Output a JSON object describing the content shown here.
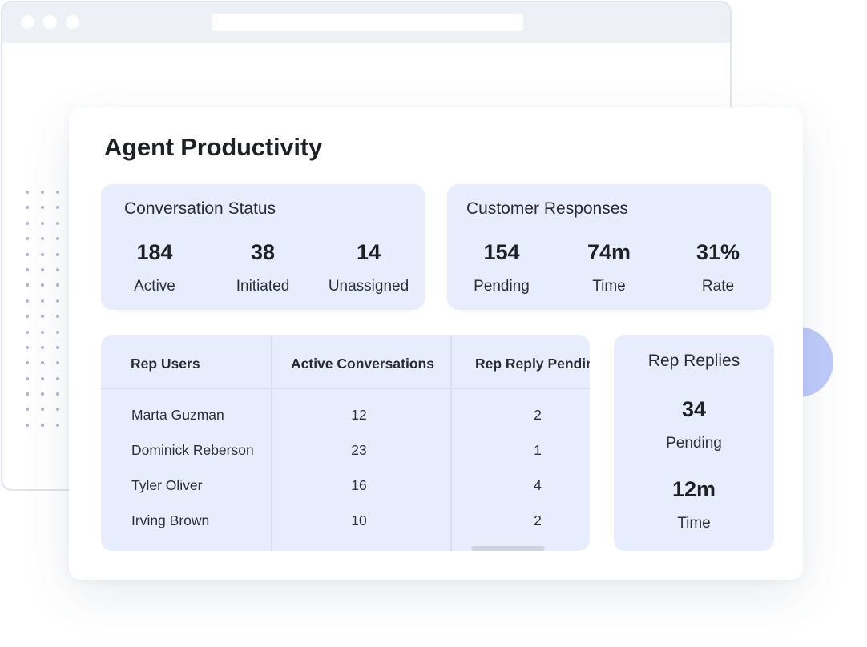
{
  "page": {
    "title": "Agent Productivity"
  },
  "conversation_status": {
    "title": "Conversation Status",
    "stats": [
      {
        "value": "184",
        "label": "Active"
      },
      {
        "value": "38",
        "label": "Initiated"
      },
      {
        "value": "14",
        "label": "Unassigned"
      }
    ]
  },
  "customer_responses": {
    "title": "Customer Responses",
    "stats": [
      {
        "value": "154",
        "label": "Pending"
      },
      {
        "value": "74m",
        "label": "Time"
      },
      {
        "value": "31%",
        "label": "Rate"
      }
    ]
  },
  "rep_table": {
    "columns": [
      "Rep Users",
      "Active Conversations",
      "Rep Reply Pending"
    ],
    "rows": [
      {
        "name": "Marta Guzman",
        "active": "12",
        "pending": "2"
      },
      {
        "name": "Dominick Reberson",
        "active": "23",
        "pending": "1"
      },
      {
        "name": "Tyler Oliver",
        "active": "16",
        "pending": "4"
      },
      {
        "name": "Irving Brown",
        "active": "10",
        "pending": "2"
      }
    ]
  },
  "rep_replies": {
    "title": "Rep Replies",
    "stats": [
      {
        "value": "34",
        "label": "Pending"
      },
      {
        "value": "12m",
        "label": "Time"
      }
    ]
  },
  "colors": {
    "panel_bg": "#e8edfd",
    "accent_circle": "#bfcbfa",
    "window_chrome": "#edf1f6"
  }
}
